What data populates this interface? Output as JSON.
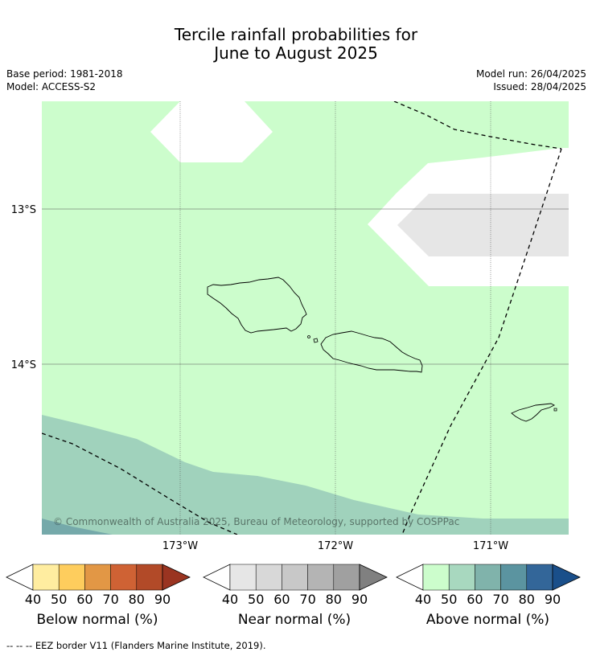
{
  "title": {
    "line1": "Tercile rainfall probabilities for",
    "line2": "June to August 2025"
  },
  "meta": {
    "base_period": "Base period: 1981-2018",
    "model": "Model: ACCESS-S2",
    "model_run": "Model run: 26/04/2025",
    "issued": "Issued: 28/04/2025"
  },
  "map": {
    "lat_labels": [
      "13°S",
      "14°S"
    ],
    "lon_labels": [
      "173°W",
      "172°W",
      "171°W"
    ],
    "copyright": "© Commonwealth of Australia 2025, Bureau of Meteorology, supported by COSPPac",
    "colors": {
      "ocean_base": "#ccfdcc",
      "above_60_70": "#a0d2bc",
      "above_70_80": "#75a9aa",
      "near_50_60": "#e6e6e6",
      "no_category": "#ffffff",
      "coastline": "#000000",
      "eez_border": "#000000"
    }
  },
  "colorbars": [
    {
      "label": "Below normal (%)",
      "ticks": [
        "40",
        "50",
        "60",
        "70",
        "80",
        "90"
      ],
      "colors": [
        "#ffffff",
        "#ffeda0",
        "#fecd5d",
        "#e29745",
        "#cf6234",
        "#b24a28",
        "#9a3421"
      ]
    },
    {
      "label": "Near normal (%)",
      "ticks": [
        "40",
        "50",
        "60",
        "70",
        "80",
        "90"
      ],
      "colors": [
        "#ffffff",
        "#e6e6e6",
        "#d8d8d8",
        "#c8c8c8",
        "#b4b4b4",
        "#a0a0a0",
        "#808080"
      ]
    },
    {
      "label": "Above normal (%)",
      "ticks": [
        "40",
        "50",
        "60",
        "70",
        "80",
        "90"
      ],
      "colors": [
        "#ffffff",
        "#ccfdcc",
        "#a8d8bf",
        "#80b3ab",
        "#5b94a0",
        "#336699",
        "#1a4f8a"
      ]
    }
  ],
  "footer": "--  --  -- EEZ border V11 (Flanders Marine Institute, 2019)."
}
